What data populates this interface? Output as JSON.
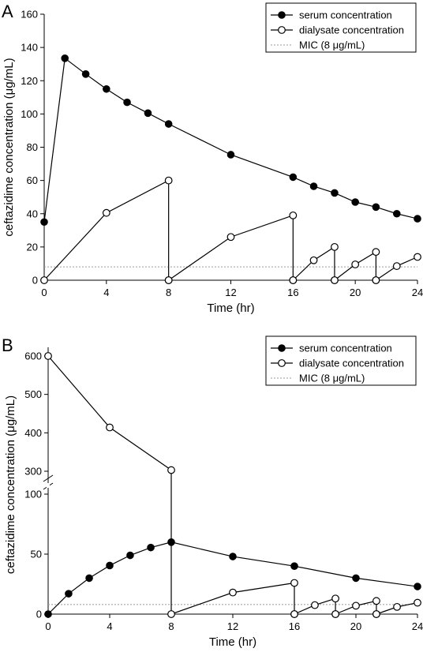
{
  "chart_data": [
    {
      "panel": "A",
      "type": "line",
      "xlabel": "Time (hr)",
      "ylabel": "ceftazidime concentration (μg/mL)",
      "xlim": [
        0,
        24
      ],
      "ylim": [
        0,
        160
      ],
      "x_ticks": [
        0,
        4,
        8,
        12,
        16,
        20,
        24
      ],
      "y_ticks": [
        0,
        20,
        40,
        60,
        80,
        100,
        120,
        140,
        160
      ],
      "legend": {
        "position": "top-right",
        "entries": [
          "serum concentration",
          "dialysate concentration",
          "MIC (8 μg/mL)"
        ]
      },
      "series": [
        {
          "name": "serum concentration",
          "marker": "filled-circle",
          "x": [
            0,
            1.33,
            2.67,
            4,
            5.33,
            6.67,
            8,
            12,
            16,
            17.33,
            18.67,
            20,
            21.33,
            22.67,
            24
          ],
          "y": [
            35,
            133.5,
            124,
            115,
            107,
            100.5,
            94,
            75.5,
            62,
            56.5,
            52.5,
            47,
            44,
            40,
            37
          ]
        },
        {
          "name": "dialysate concentration",
          "marker": "open-circle",
          "segments": [
            {
              "x": [
                0,
                4,
                8,
                8
              ],
              "y": [
                0,
                40.5,
                60,
                0
              ]
            },
            {
              "x": [
                8,
                12,
                16,
                16
              ],
              "y": [
                0,
                26,
                39,
                0
              ]
            },
            {
              "x": [
                16,
                17.33,
                18.67,
                18.67
              ],
              "y": [
                0,
                12,
                20,
                0
              ]
            },
            {
              "x": [
                18.67,
                20,
                21.33,
                21.33
              ],
              "y": [
                0,
                9.5,
                17,
                0
              ]
            },
            {
              "x": [
                21.33,
                22.67,
                24
              ],
              "y": [
                0,
                8.5,
                14
              ]
            }
          ]
        },
        {
          "name": "MIC (8 μg/mL)",
          "style": "dotted",
          "x": [
            0,
            24
          ],
          "y": [
            8,
            8
          ]
        }
      ]
    },
    {
      "panel": "B",
      "type": "line",
      "xlabel": "Time (hr)",
      "ylabel": "ceftazidime concentration (μg/mL)",
      "xlim": [
        0,
        24
      ],
      "ylim_lower": [
        0,
        100
      ],
      "ylim_upper": [
        300,
        600
      ],
      "axis_break": true,
      "x_ticks": [
        0,
        4,
        8,
        12,
        16,
        20,
        24
      ],
      "y_ticks_lower": [
        0,
        50,
        100
      ],
      "y_ticks_upper": [
        300,
        400,
        500,
        600
      ],
      "legend": {
        "position": "top-right",
        "entries": [
          "serum concentration",
          "dialysate concentration",
          "MIC (8 μg/mL)"
        ]
      },
      "series": [
        {
          "name": "serum concentration",
          "marker": "filled-circle",
          "x": [
            0,
            1.33,
            2.67,
            4,
            5.33,
            6.67,
            8,
            12,
            16,
            20,
            24
          ],
          "y": [
            0,
            17,
            30,
            40.5,
            49,
            55.5,
            60,
            48,
            40,
            30,
            23
          ]
        },
        {
          "name": "dialysate concentration",
          "marker": "open-circle",
          "segments": [
            {
              "x": [
                0,
                4,
                8
              ],
              "y": [
                600,
                414,
                303
              ]
            },
            {
              "x": [
                8,
                12,
                16,
                16
              ],
              "y": [
                0,
                18,
                26,
                0
              ]
            },
            {
              "x": [
                16,
                17.33,
                18.67,
                18.67
              ],
              "y": [
                0,
                7.5,
                13,
                0
              ]
            },
            {
              "x": [
                18.67,
                20,
                21.33,
                21.33
              ],
              "y": [
                0,
                7,
                11,
                0
              ]
            },
            {
              "x": [
                21.33,
                22.67,
                24
              ],
              "y": [
                0,
                6,
                9.5
              ]
            }
          ]
        },
        {
          "name": "MIC (8 μg/mL)",
          "style": "dotted",
          "x": [
            0,
            24
          ],
          "y": [
            8,
            8
          ]
        }
      ]
    }
  ]
}
